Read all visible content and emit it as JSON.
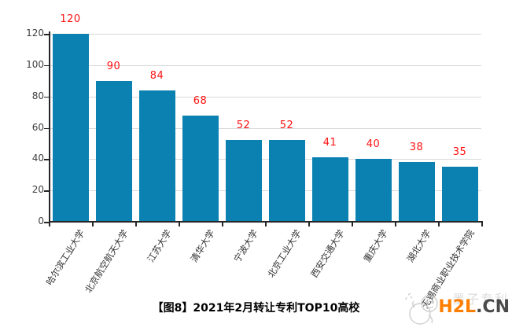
{
  "chart_data": {
    "type": "bar",
    "title": "",
    "caption": "【图8】2021年2月转让专利TOP10高校",
    "categories": [
      "哈尔滨工业大学",
      "北京航空航天大学",
      "江苏大学",
      "清华大学",
      "宁波大学",
      "北京工业大学",
      "西安交通大学",
      "重庆大学",
      "湖北大学",
      "无锡商业职业技术学院"
    ],
    "values": [
      120,
      90,
      84,
      68,
      52,
      52,
      41,
      40,
      38,
      35
    ],
    "xlabel": "",
    "ylabel": "",
    "ylim": [
      0,
      120
    ],
    "yticks": [
      0,
      20,
      40,
      60,
      80,
      100,
      120
    ],
    "grid": "horizontal",
    "legend_position": "none",
    "bar_color": "#0b81b1",
    "value_label_color": "#fe1010",
    "gridline_color": "#d9d9d9",
    "axis_color": "#262626"
  },
  "caption": "【图8】2021年2月转让专利TOP10高校",
  "watermark": {
    "gray_text": "墨子专利",
    "brand_orange": "H2L",
    "brand_dark": ".CN",
    "orange_color": "#ff7e00",
    "dark_color": "#4a4a4a",
    "logo": "mascot-doodle"
  }
}
